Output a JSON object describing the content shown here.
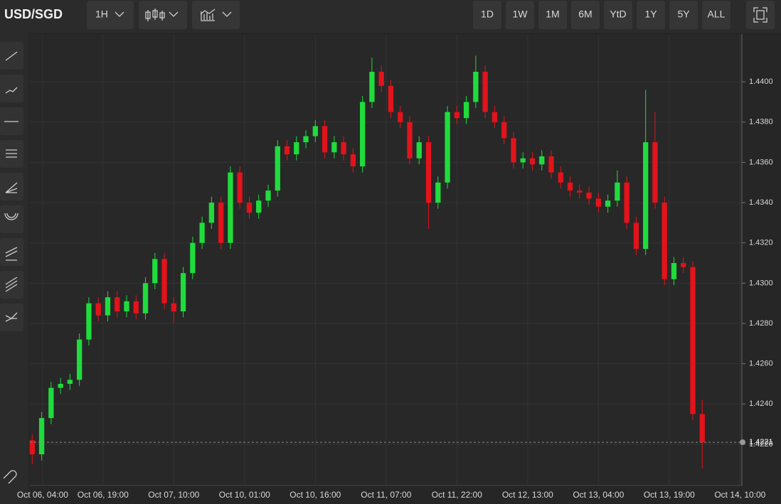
{
  "toolbar": {
    "symbol": "USD/SGD",
    "interval": "1H",
    "ranges": [
      "1D",
      "1W",
      "1M",
      "6M",
      "YtD",
      "1Y",
      "5Y",
      "ALL"
    ]
  },
  "chart_data": {
    "type": "candlestick",
    "up_color": "#1fdc3c",
    "down_color": "#e3131b",
    "open": [
      1.4222,
      1.4215,
      1.4233,
      1.4248,
      1.425,
      1.4252,
      1.4272,
      1.429,
      1.4284,
      1.4293,
      1.4286,
      1.4291,
      1.4285,
      1.43,
      1.4312,
      1.429,
      1.4286,
      1.4305,
      1.432,
      1.433,
      1.434,
      1.432,
      1.4355,
      1.434,
      1.4335,
      1.4341,
      1.4346,
      1.4368,
      1.4364,
      1.437,
      1.4373,
      1.4378,
      1.4365,
      1.437,
      1.4364,
      1.4358,
      1.439,
      1.4405,
      1.4398,
      1.4385,
      1.438,
      1.4362,
      1.437,
      1.434,
      1.435,
      1.4385,
      1.4382,
      1.439,
      1.4405,
      1.4385,
      1.438,
      1.4372,
      1.436,
      1.4362,
      1.4359,
      1.4363,
      1.4355,
      1.435,
      1.4346,
      1.4345,
      1.4342,
      1.4338,
      1.4341,
      1.435,
      1.433,
      1.4317,
      1.437,
      1.434,
      1.4302,
      1.431,
      1.4308,
      1.4235
    ],
    "high": [
      1.4225,
      1.4236,
      1.4251,
      1.4253,
      1.4255,
      1.4275,
      1.4293,
      1.4293,
      1.4296,
      1.4296,
      1.4294,
      1.4294,
      1.4303,
      1.4315,
      1.4315,
      1.4293,
      1.4308,
      1.4323,
      1.4333,
      1.4343,
      1.4343,
      1.4358,
      1.4358,
      1.4343,
      1.4344,
      1.4349,
      1.4371,
      1.4371,
      1.4373,
      1.4376,
      1.4381,
      1.4381,
      1.4373,
      1.4373,
      1.4367,
      1.4393,
      1.4412,
      1.4408,
      1.4401,
      1.4388,
      1.4383,
      1.4373,
      1.4373,
      1.4353,
      1.4388,
      1.4388,
      1.4393,
      1.4413,
      1.4408,
      1.4388,
      1.4383,
      1.4375,
      1.4365,
      1.4365,
      1.4366,
      1.4366,
      1.4358,
      1.4353,
      1.4349,
      1.4348,
      1.4345,
      1.4344,
      1.4356,
      1.4353,
      1.4333,
      1.4396,
      1.4385,
      1.4343,
      1.4313,
      1.4313,
      1.4311,
      1.4242
    ],
    "low": [
      1.421,
      1.4212,
      1.423,
      1.4245,
      1.4247,
      1.4249,
      1.4269,
      1.4281,
      1.4281,
      1.4283,
      1.4283,
      1.4282,
      1.4282,
      1.4297,
      1.4287,
      1.428,
      1.4283,
      1.4302,
      1.4317,
      1.4327,
      1.4317,
      1.4317,
      1.4337,
      1.4332,
      1.4332,
      1.4338,
      1.4343,
      1.4361,
      1.4361,
      1.4367,
      1.437,
      1.4362,
      1.4362,
      1.4361,
      1.4355,
      1.4355,
      1.4387,
      1.4395,
      1.4382,
      1.4377,
      1.4359,
      1.4359,
      1.4327,
      1.4337,
      1.4347,
      1.4379,
      1.4379,
      1.4387,
      1.4382,
      1.4377,
      1.4369,
      1.4357,
      1.4357,
      1.4356,
      1.4356,
      1.4352,
      1.4347,
      1.4343,
      1.4342,
      1.4339,
      1.4335,
      1.4335,
      1.4338,
      1.4327,
      1.4314,
      1.4314,
      1.4337,
      1.4299,
      1.4299,
      1.4305,
      1.4232,
      1.4208
    ],
    "close": [
      1.4215,
      1.4233,
      1.4248,
      1.425,
      1.4252,
      1.4272,
      1.429,
      1.4284,
      1.4293,
      1.4286,
      1.4291,
      1.4285,
      1.43,
      1.4312,
      1.429,
      1.4286,
      1.4305,
      1.432,
      1.433,
      1.434,
      1.432,
      1.4355,
      1.434,
      1.4335,
      1.4341,
      1.4346,
      1.4368,
      1.4364,
      1.437,
      1.4373,
      1.4378,
      1.4365,
      1.437,
      1.4364,
      1.4358,
      1.439,
      1.4405,
      1.4398,
      1.4385,
      1.438,
      1.4362,
      1.437,
      1.434,
      1.435,
      1.4385,
      1.4382,
      1.439,
      1.4405,
      1.4385,
      1.438,
      1.4372,
      1.436,
      1.4362,
      1.4359,
      1.4363,
      1.4355,
      1.435,
      1.4346,
      1.4345,
      1.4342,
      1.4338,
      1.4341,
      1.435,
      1.433,
      1.4317,
      1.437,
      1.434,
      1.4302,
      1.431,
      1.4308,
      1.4235,
      1.4221
    ],
    "xlim": [
      -0.25,
      75.2
    ],
    "xticks": [
      {
        "value": 1.1,
        "label": "Oct 06, 04:00"
      },
      {
        "value": 7.5,
        "label": "Oct 06, 19:00"
      },
      {
        "value": 15,
        "label": "Oct 07, 10:00"
      },
      {
        "value": 22.5,
        "label": "Oct 10, 01:00"
      },
      {
        "value": 30,
        "label": "Oct 10, 16:00"
      },
      {
        "value": 37.5,
        "label": "Oct 11, 07:00"
      },
      {
        "value": 45,
        "label": "Oct 11, 22:00"
      },
      {
        "value": 52.5,
        "label": "Oct 12, 13:00"
      },
      {
        "value": 60,
        "label": "Oct 13, 04:00"
      },
      {
        "value": 67.5,
        "label": "Oct 13, 19:00"
      },
      {
        "value": 75,
        "label": "Oct 14, 10:00"
      }
    ],
    "ylim": [
      1.41995,
      1.44237
    ],
    "yticks": [
      {
        "value": 1.422,
        "label": "1.4220"
      },
      {
        "value": 1.424,
        "label": "1.4240"
      },
      {
        "value": 1.426,
        "label": "1.4260"
      },
      {
        "value": 1.428,
        "label": "1.4280"
      },
      {
        "value": 1.43,
        "label": "1.4300"
      },
      {
        "value": 1.432,
        "label": "1.4320"
      },
      {
        "value": 1.434,
        "label": "1.4340"
      },
      {
        "value": 1.436,
        "label": "1.4360"
      },
      {
        "value": 1.438,
        "label": "1.4380"
      },
      {
        "value": 1.44,
        "label": "1.4400"
      }
    ],
    "grid": true,
    "last_price": 1.4221
  }
}
